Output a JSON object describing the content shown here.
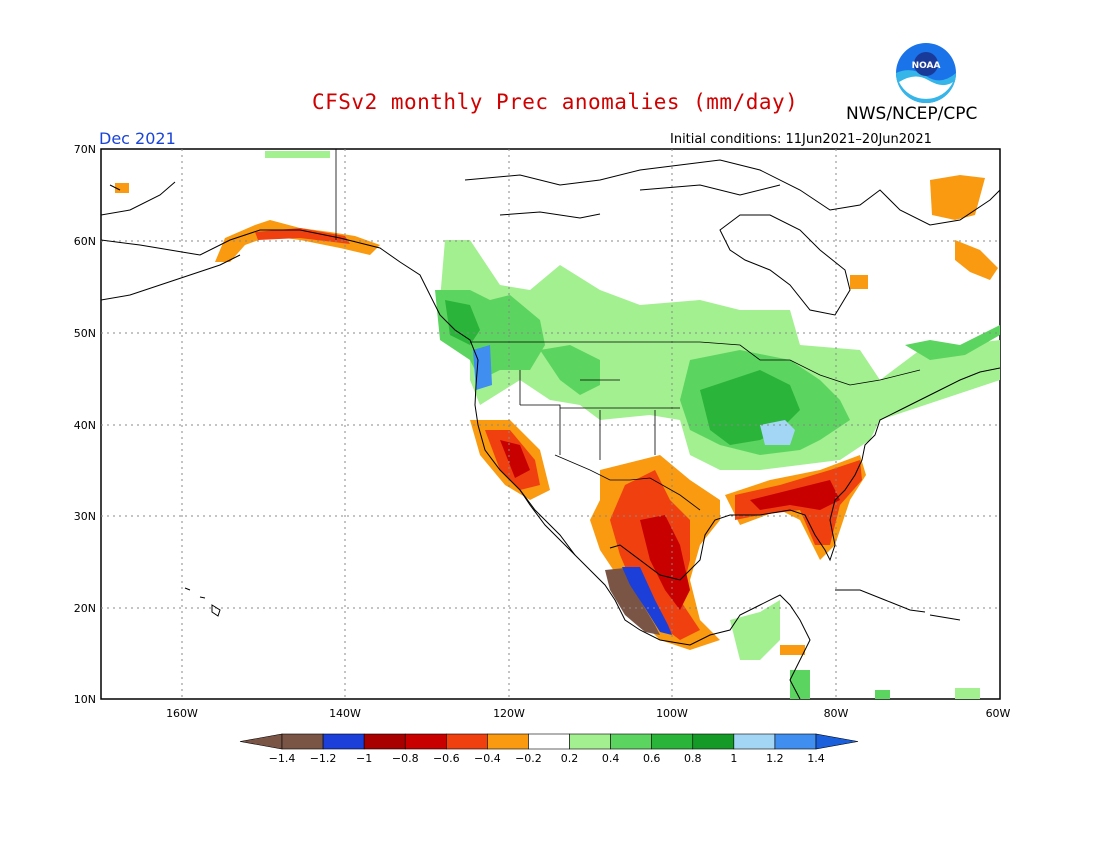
{
  "header": {
    "title": "CFSv2 monthly Prec anomalies (mm/day)",
    "month": "Dec 2021",
    "initial_conditions": "Initial conditions: 11Jun2021–20Jun2021",
    "org": "NWS/NCEP/CPC",
    "logo_text": "NOAA"
  },
  "axes": {
    "lat_labels": [
      "70N",
      "60N",
      "50N",
      "40N",
      "30N",
      "20N",
      "10N"
    ],
    "lon_labels": [
      "160W",
      "140W",
      "120W",
      "100W",
      "80W",
      "60W"
    ]
  },
  "colorbar": {
    "tick_labels": [
      "−1.4",
      "−1.2",
      "−1",
      "−0.8",
      "−0.6",
      "−0.4",
      "−0.2",
      "0.2",
      "0.4",
      "0.6",
      "0.8",
      "1",
      "1.2",
      "1.4"
    ],
    "colors": [
      "#7a5545",
      "#1b3fd8",
      "#a80000",
      "#c80000",
      "#f04010",
      "#f99a10",
      "#ffffff",
      "#a2f090",
      "#5cd460",
      "#2ab43a",
      "#159a28",
      "#a3d6f5",
      "#3f8ef0",
      "#1a5fdc"
    ]
  },
  "colors": {
    "title": "#d00000",
    "month": "#1a44d8",
    "land_outline": "#000000"
  }
}
